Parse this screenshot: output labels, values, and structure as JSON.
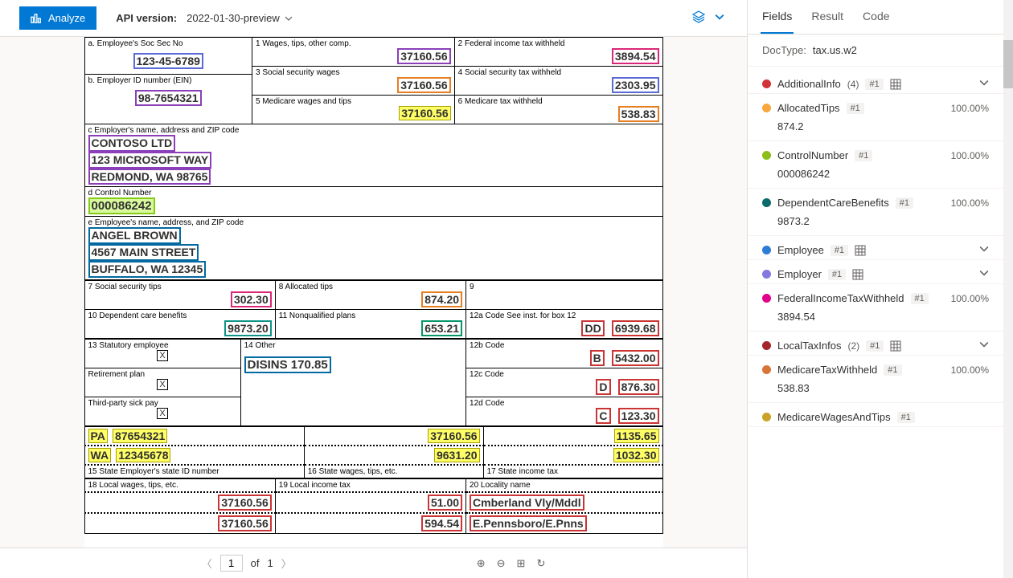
{
  "toolbar": {
    "analyze_label": "Analyze",
    "api_version_label": "API version:",
    "api_version_value": "2022-01-30-preview"
  },
  "pager": {
    "page": "1",
    "of_label": "of",
    "total": "1"
  },
  "tabs": {
    "fields": "Fields",
    "result": "Result",
    "code": "Code"
  },
  "doctype": {
    "label": "DocType:",
    "value": "tax.us.w2"
  },
  "w2": {
    "a_label": "a. Employee's Soc Sec No",
    "a_value": "123-45-6789",
    "b_label": "b. Employer ID number (EIN)",
    "b_value": "98-7654321",
    "box1_label": "1 Wages, tips, other comp.",
    "box1_value": "37160.56",
    "box2_label": "2 Federal income tax withheld",
    "box2_value": "3894.54",
    "box3_label": "3 Social security wages",
    "box3_value": "37160.56",
    "box4_label": "4 Social security tax withheld",
    "box4_value": "2303.95",
    "box5_label": "5 Medicare wages and tips",
    "box5_value": "37160.56",
    "box6_label": "6 Medicare tax withheld",
    "box6_value": "538.83",
    "c_label": "c Employer's name, address and ZIP code",
    "c_line1": "CONTOSO LTD",
    "c_line2": "123 MICROSOFT WAY",
    "c_line3": "REDMOND, WA 98765",
    "d_label": "d Control Number",
    "d_value": "000086242",
    "e_label": "e Employee's name, address, and ZIP code",
    "e_line1": "ANGEL BROWN",
    "e_line2": "4567 MAIN STREET",
    "e_line3": "BUFFALO, WA 12345",
    "box7_label": "7 Social security tips",
    "box7_value": "302.30",
    "box8_label": "8 Allocated tips",
    "box8_value": "874.20",
    "box9_label": "9",
    "box10_label": "10 Dependent care benefits",
    "box10_value": "9873.20",
    "box11_label": "11 Nonqualified plans",
    "box11_value": "653.21",
    "box12a_label": "12a Code See inst. for box 12",
    "box12a_code": "DD",
    "box12a_value": "6939.68",
    "box12b_label": "12b Code",
    "box12b_code": "B",
    "box12b_value": "5432.00",
    "box12c_label": "12c Code",
    "box12c_code": "D",
    "box12c_value": "876.30",
    "box12d_label": "12d Code",
    "box12d_code": "C",
    "box12d_value": "123.30",
    "box13_label": "13 Statutory employee",
    "box13_ret": "Retirement plan",
    "box13_sick": "Third-party sick pay",
    "box14_label": "14 Other",
    "box14_value": "DISINS    170.85",
    "state1_code": "PA",
    "state1_id": "87654321",
    "state2_code": "WA",
    "state2_id": "12345678",
    "state1_wages": "37160.56",
    "state1_tax": "1135.65",
    "state2_wages": "9631.20",
    "state2_tax": "1032.30",
    "box15_label": "15 State Employer's state ID number",
    "box16_label": "16 State wages, tips, etc.",
    "box17_label": "17 State income tax",
    "box18_label": "18 Local wages, tips, etc.",
    "box19_label": "19 Local income tax",
    "box20_label": "20 Locality name",
    "local1_wages": "37160.56",
    "local1_tax": "51.00",
    "local1_name": "Cmberland Vly/Mddl",
    "local2_wages": "37160.56",
    "local2_tax": "594.54",
    "local2_name": "E.Pennsboro/E.Pnns"
  },
  "fields": [
    {
      "name": "AdditionalInfo",
      "count": "(4)",
      "badge": "#1",
      "table": true,
      "color": "#d13438",
      "expandable": true
    },
    {
      "name": "AllocatedTips",
      "badge": "#1",
      "conf": "100.00%",
      "color": "#f7a73b",
      "value": "874.2"
    },
    {
      "name": "ControlNumber",
      "badge": "#1",
      "conf": "100.00%",
      "color": "#8cbd18",
      "value": "000086242"
    },
    {
      "name": "DependentCareBenefits",
      "badge": "#1",
      "conf": "100.00%",
      "color": "#0b6a6a",
      "value": "9873.2"
    },
    {
      "name": "Employee",
      "badge": "#1",
      "table": true,
      "color": "#2d7cd6",
      "expandable": true
    },
    {
      "name": "Employer",
      "badge": "#1",
      "table": true,
      "color": "#8378de",
      "expandable": true
    },
    {
      "name": "FederalIncomeTaxWithheld",
      "badge": "#1",
      "conf": "100.00%",
      "color": "#e3008c",
      "value": "3894.54"
    },
    {
      "name": "LocalTaxInfos",
      "count": "(2)",
      "badge": "#1",
      "table": true,
      "color": "#a4262c",
      "expandable": true
    },
    {
      "name": "MedicareTaxWithheld",
      "badge": "#1",
      "conf": "100.00%",
      "color": "#d87539",
      "value": "538.83"
    },
    {
      "name": "MedicareWagesAndTips",
      "badge": "#1",
      "color": "#c9a227"
    }
  ]
}
